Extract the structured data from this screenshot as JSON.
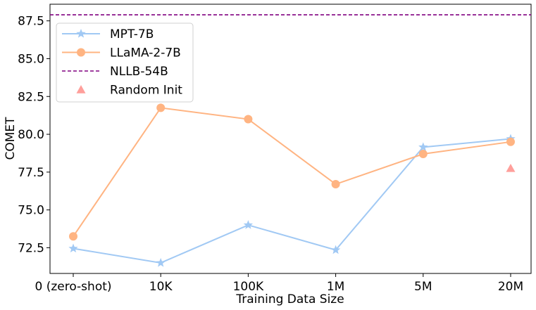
{
  "chart_data": {
    "type": "line",
    "xlabel": "Training Data Size",
    "ylabel": "COMET",
    "categories": [
      "0 (zero-shot)",
      "10K",
      "100K",
      "1M",
      "5M",
      "20M"
    ],
    "ylim": [
      70.8,
      88.6
    ],
    "yticks": [
      "72.5",
      "75.0",
      "77.5",
      "80.0",
      "82.5",
      "85.0",
      "87.5"
    ],
    "series": [
      {
        "name": "MPT-7B",
        "values": [
          72.45,
          71.5,
          74.0,
          72.35,
          79.15,
          79.7
        ],
        "color": "#a1c9f4",
        "marker": "star"
      },
      {
        "name": "LLaMA-2-7B",
        "values": [
          73.25,
          81.75,
          81.0,
          76.7,
          78.7,
          79.5
        ],
        "color": "#ffb482",
        "marker": "circle"
      }
    ],
    "reference_lines": [
      {
        "name": "NLLB-54B",
        "value": 87.9,
        "color": "#800080",
        "style": "dashed"
      }
    ],
    "points": [
      {
        "name": "Random Init",
        "category": "20M",
        "value": 77.75,
        "color": "#ff9f9b",
        "marker": "triangle"
      }
    ],
    "legend_position": "top-left",
    "grid": false
  }
}
